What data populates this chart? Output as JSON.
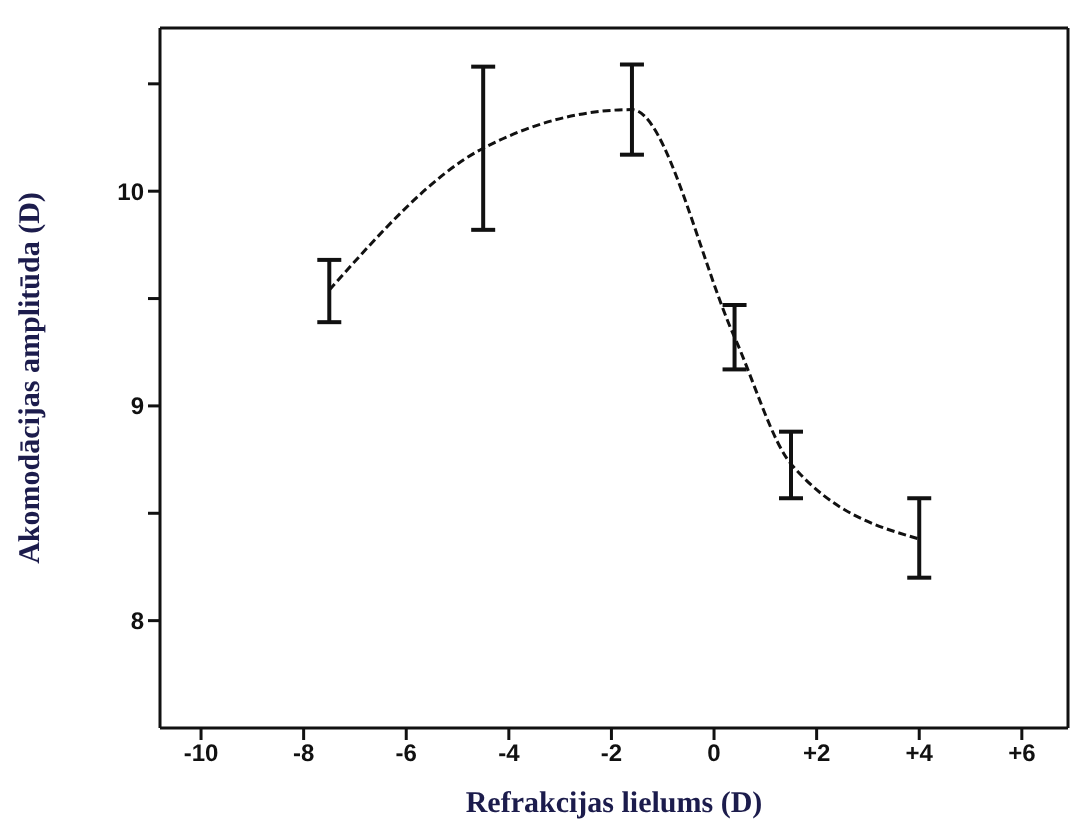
{
  "chart_data": {
    "type": "line",
    "xlabel": "Refrakcijas lielums (D)",
    "ylabel": "Akomodācijas amplitūda (D)",
    "x": [
      -7.5,
      -4.5,
      -1.6,
      0.4,
      1.5,
      4
    ],
    "series": [
      {
        "color": "#111111",
        "values": [
          9.54,
          10.2,
          10.38,
          9.32,
          8.73,
          8.38
        ],
        "errors": [
          [
            9.39,
            9.68
          ],
          [
            9.82,
            10.58
          ],
          [
            10.17,
            10.59
          ],
          [
            9.17,
            9.47
          ],
          [
            8.57,
            8.88
          ],
          [
            8.2,
            8.57
          ]
        ]
      }
    ],
    "xlim": [
      -10.8,
      6.9
    ],
    "xticks": [
      -10,
      -8,
      -6,
      -4,
      -2,
      0,
      {
        "value": 2,
        "label": "+2"
      },
      {
        "value": 4,
        "label": "+4"
      },
      {
        "value": 6,
        "label": "+6"
      }
    ],
    "ylim": [
      7.5,
      10.76
    ],
    "yticks": [
      8,
      {
        "value": 8.5,
        "label": null
      },
      9,
      {
        "value": 9.5,
        "label": null
      },
      10,
      {
        "value": 10.5,
        "label": null
      }
    ],
    "marker": "none",
    "line_style": "dashed"
  }
}
